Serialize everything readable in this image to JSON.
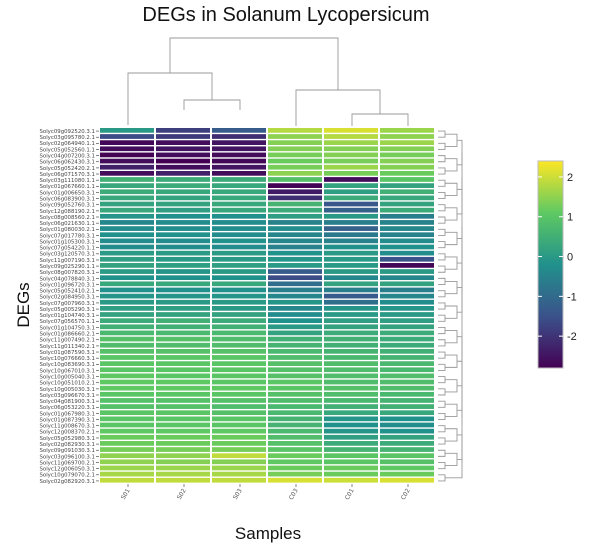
{
  "chart_data": {
    "type": "heatmap",
    "title": "DEGs in Solanum Lycopersicum",
    "xlabel": "Samples",
    "ylabel": "DEGs",
    "columns": [
      "S01",
      "S02",
      "S03",
      "C03",
      "C01",
      "C02"
    ],
    "rows": [
      "Solyc09g092520.3.1",
      "Solyc03g095780.2.1",
      "Solyc02g064940.1.1",
      "Solyc05g052560.1.1",
      "Solyc04g007200.3.1",
      "Solyc06g062430.3.1",
      "Solyc05g052420.2.1",
      "Solyc06g071570.3.1",
      "Solyc03g111080.1.1",
      "Solyc01g067660.1.1",
      "Solyc01g006650.3.1",
      "Solyc06g083900.3.1",
      "Solyc09g052760.3.1",
      "Solyc12g088190.2.1",
      "Solyc08g008560.2.1",
      "Solyc06g021630.1.1",
      "Solyc01g080030.2.1",
      "Solyc07g017780.3.1",
      "Solyc01g105300.3.1",
      "Solyc07g054220.1.1",
      "Solyc03g120570.3.1",
      "Solyc11g007190.3.1",
      "Solyc09g025290.1.1",
      "Solyc08g007820.3.1",
      "Solyc04g078840.3.1",
      "Solyc01g096720.3.1",
      "Solyc05g052410.2.1",
      "Solyc02g084950.3.1",
      "Solyc07g007960.3.1",
      "Solyc05g005290.3.1",
      "Solyc01g104740.3.1",
      "Solyc07g056570.1.1",
      "Solyc01g104750.3.1",
      "Solyc01g086660.2.1",
      "Solyc11g007490.2.1",
      "Solyc11g011340.2.1",
      "Solyc01g087590.3.1",
      "Solyc10g076660.3.1",
      "Solyc10g083690.3.1",
      "Solyc10g067010.3.1",
      "Solyc10g005040.3.1",
      "Solyc10g051010.2.1",
      "Solyc10g005030.3.1",
      "Solyc03g096670.3.1",
      "Solyc04g081900.3.1",
      "Solyc06g053220.3.1",
      "Solyc01g067980.3.1",
      "Solyc01g087390.3.1",
      "Solyc11g008670.3.1",
      "Solyc12g008370.2.1",
      "Solyc05g052980.3.1",
      "Solyc02g082930.3.1",
      "Solyc09g091030.3.1",
      "Solyc03g096100.3.1",
      "Solyc11g069700.2.1",
      "Solyc12g006050.3.1",
      "Solyc10g079070.2.1",
      "Solyc02g082920.3.1"
    ],
    "values": [
      [
        0.0,
        -1.8,
        -1.3,
        1.8,
        2.1,
        1.6
      ],
      [
        -1.6,
        -1.9,
        -2.1,
        1.5,
        1.8,
        1.5
      ],
      [
        -2.7,
        -2.6,
        -2.5,
        1.4,
        1.6,
        1.6
      ],
      [
        -2.6,
        -2.5,
        -2.5,
        1.4,
        1.4,
        1.4
      ],
      [
        -2.8,
        -2.6,
        -2.6,
        1.3,
        1.4,
        1.3
      ],
      [
        -2.6,
        -2.8,
        -2.7,
        1.2,
        1.3,
        1.4
      ],
      [
        -2.3,
        -2.6,
        -2.5,
        1.3,
        1.6,
        1.4
      ],
      [
        -2.6,
        -2.3,
        -2.6,
        1.5,
        1.3,
        1.2
      ],
      [
        0.5,
        0.4,
        0.4,
        0.9,
        -2.6,
        1.0
      ],
      [
        0.3,
        0.4,
        0.3,
        -2.8,
        0.2,
        0.2
      ],
      [
        0.4,
        0.3,
        0.3,
        -2.4,
        0.1,
        0.5
      ],
      [
        0.3,
        0.2,
        0.3,
        -2.1,
        0.4,
        0.3
      ],
      [
        0.2,
        0.2,
        0.3,
        0.6,
        -1.4,
        0.2
      ],
      [
        0.3,
        0.1,
        0.3,
        0.4,
        -1.2,
        0.4
      ],
      [
        -0.1,
        -0.2,
        -0.2,
        0.1,
        0.0,
        -0.6
      ],
      [
        -0.4,
        -0.3,
        -0.3,
        -0.5,
        -0.6,
        -0.5
      ],
      [
        -0.3,
        -0.3,
        -0.3,
        -0.3,
        -1.2,
        -0.4
      ],
      [
        -0.2,
        -0.2,
        -0.3,
        -0.4,
        -0.7,
        -0.5
      ],
      [
        -0.3,
        -0.3,
        -0.2,
        -0.4,
        -0.5,
        -0.3
      ],
      [
        -0.3,
        -0.3,
        -0.3,
        -0.5,
        -0.2,
        -0.2
      ],
      [
        0.0,
        0.0,
        0.0,
        -0.2,
        0.0,
        -0.3
      ],
      [
        0.1,
        0.0,
        0.0,
        -0.1,
        0.0,
        -1.5
      ],
      [
        0.2,
        0.1,
        0.1,
        0.0,
        0.0,
        -2.7
      ],
      [
        0.0,
        -0.1,
        0.0,
        -1.3,
        0.0,
        0.0
      ],
      [
        -0.2,
        -0.2,
        -0.2,
        -1.6,
        -0.4,
        -0.4
      ],
      [
        0.3,
        0.3,
        0.3,
        -0.9,
        0.2,
        0.2
      ],
      [
        -0.2,
        -0.2,
        -0.2,
        -0.6,
        -0.6,
        -0.6
      ],
      [
        -0.1,
        -0.1,
        -0.1,
        -0.4,
        -1.3,
        -0.4
      ],
      [
        0.0,
        0.0,
        0.0,
        -0.1,
        -0.9,
        -0.3
      ],
      [
        0.1,
        0.1,
        0.0,
        -0.4,
        -0.1,
        -0.1
      ],
      [
        0.2,
        0.2,
        0.2,
        -0.3,
        0.0,
        0.0
      ],
      [
        0.4,
        0.5,
        0.4,
        -0.2,
        0.1,
        0.1
      ],
      [
        0.5,
        0.5,
        0.5,
        0.0,
        0.2,
        0.2
      ],
      [
        0.7,
        0.7,
        0.7,
        0.2,
        0.4,
        0.4
      ],
      [
        0.9,
        0.9,
        0.8,
        0.5,
        0.5,
        0.4
      ],
      [
        0.8,
        0.8,
        0.8,
        0.6,
        0.5,
        0.4
      ],
      [
        0.9,
        0.9,
        0.9,
        0.7,
        0.6,
        0.5
      ],
      [
        1.0,
        1.0,
        1.0,
        0.8,
        0.7,
        0.6
      ],
      [
        1.0,
        1.0,
        1.0,
        0.9,
        0.8,
        0.7
      ],
      [
        1.0,
        1.0,
        1.0,
        0.9,
        0.8,
        0.7
      ],
      [
        1.1,
        1.0,
        1.0,
        0.9,
        0.8,
        0.8
      ],
      [
        1.1,
        1.1,
        1.0,
        1.0,
        0.8,
        0.8
      ],
      [
        1.1,
        1.1,
        1.1,
        1.0,
        0.9,
        0.8
      ],
      [
        1.0,
        1.0,
        1.0,
        0.9,
        0.8,
        0.7
      ],
      [
        0.9,
        0.9,
        0.9,
        0.8,
        0.7,
        0.6
      ],
      [
        0.9,
        0.9,
        0.8,
        0.7,
        0.5,
        0.5
      ],
      [
        1.0,
        1.0,
        0.9,
        0.7,
        0.3,
        0.3
      ],
      [
        1.0,
        1.0,
        1.0,
        0.6,
        -0.1,
        -0.2
      ],
      [
        1.0,
        1.0,
        1.0,
        0.6,
        -0.2,
        -0.3
      ],
      [
        1.1,
        1.1,
        1.1,
        0.7,
        -0.1,
        -0.2
      ],
      [
        1.2,
        1.2,
        1.2,
        0.8,
        0.1,
        0.2
      ],
      [
        1.2,
        1.2,
        1.2,
        0.9,
        0.4,
        0.4
      ],
      [
        1.3,
        1.3,
        1.3,
        1.0,
        0.6,
        0.6
      ],
      [
        1.5,
        1.5,
        1.9,
        1.2,
        1.0,
        1.0
      ],
      [
        1.5,
        1.4,
        1.4,
        1.1,
        1.0,
        0.9
      ],
      [
        1.6,
        1.6,
        1.6,
        1.2,
        1.2,
        1.1
      ],
      [
        1.7,
        1.7,
        1.7,
        1.3,
        1.2,
        1.2
      ],
      [
        1.9,
        1.9,
        1.9,
        2.1,
        2.0,
        2.1
      ]
    ],
    "colorbar": {
      "ticks": [
        2,
        1,
        0,
        -1,
        -2
      ],
      "range": [
        -2.8,
        2.4
      ],
      "palette": "viridis"
    },
    "grid": false
  }
}
